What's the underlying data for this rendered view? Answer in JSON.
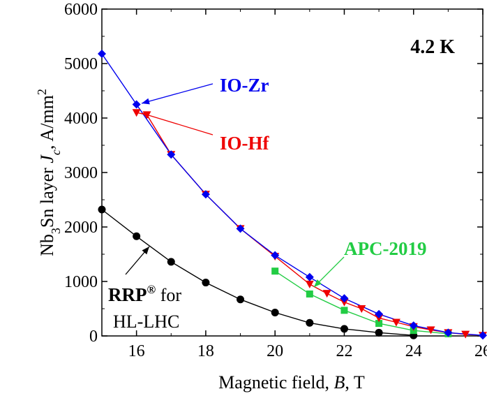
{
  "chart_data": {
    "type": "line",
    "xlabel": "Magnetic field, B, T",
    "ylabel": "Nb3Sn layer Jc, A/mm2",
    "xlim": [
      15,
      26
    ],
    "ylim": [
      0,
      6000
    ],
    "xticks": [
      "16",
      "18",
      "20",
      "22",
      "24",
      "26"
    ],
    "yticks": [
      "0",
      "1000",
      "2000",
      "3000",
      "4000",
      "5000",
      "6000"
    ],
    "grid": false,
    "temperature_label": "4.2 K",
    "series": [
      {
        "name": "IO-Zr",
        "color": "#0000ee",
        "marker": "diamond",
        "x": [
          15,
          16,
          17,
          18,
          19,
          20,
          21,
          22,
          23,
          24,
          25,
          26
        ],
        "y": [
          5180,
          4250,
          3330,
          2600,
          1970,
          1480,
          1080,
          690,
          400,
          190,
          60,
          10
        ]
      },
      {
        "name": "IO-Hf",
        "color": "#ee0000",
        "marker": "triangle-down",
        "x": [
          16,
          16.3,
          17,
          18,
          19,
          20,
          21,
          21.5,
          22,
          22.5,
          23,
          23.5,
          24,
          24.5,
          25,
          25.5,
          26
        ],
        "y": [
          4100,
          4060,
          3330,
          2600,
          1970,
          1460,
          950,
          780,
          620,
          500,
          330,
          250,
          170,
          110,
          60,
          30,
          10
        ]
      },
      {
        "name": "APC-2019",
        "color": "#22cc44",
        "marker": "square",
        "x": [
          20,
          21,
          22,
          23,
          24,
          25
        ],
        "y": [
          1190,
          770,
          470,
          230,
          100,
          40
        ]
      },
      {
        "name": "RRP® for HL-LHC",
        "color": "#000000",
        "marker": "circle",
        "x": [
          15,
          16,
          17,
          18,
          19,
          20,
          21,
          22,
          23,
          24
        ],
        "y": [
          2320,
          1830,
          1360,
          980,
          670,
          430,
          240,
          130,
          60,
          10
        ]
      }
    ],
    "annotations": {
      "io_zr": "IO-Zr",
      "io_hf": "IO-Hf",
      "apc": "APC-2019",
      "rrp_brand": "RRP",
      "rrp_reg": "®",
      "rrp_for": " for",
      "hl_lhc": "HL-LHC"
    }
  }
}
